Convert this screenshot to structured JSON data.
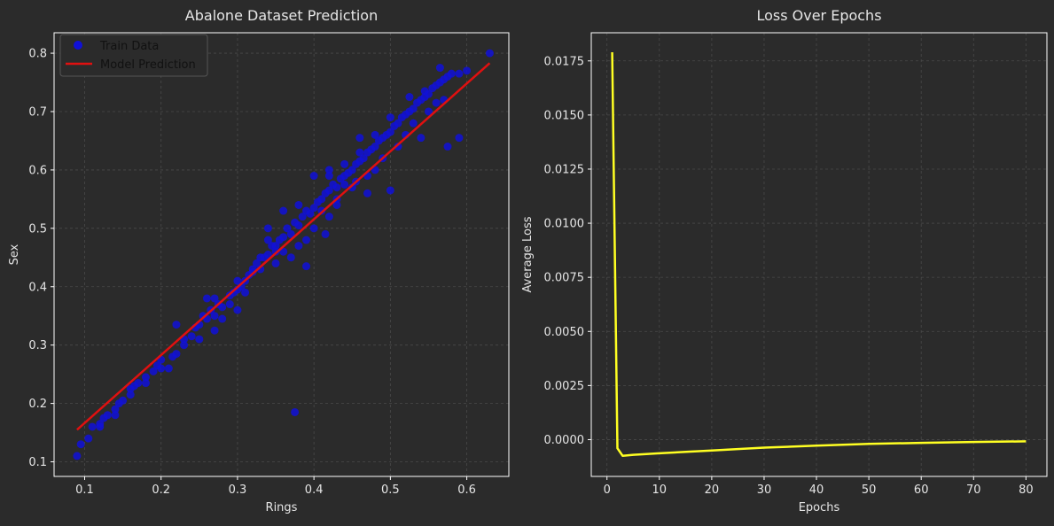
{
  "chart_data": [
    {
      "type": "scatter",
      "title": "Abalone Dataset Prediction",
      "xlabel": "Rings",
      "ylabel": "Sex",
      "xlim": [
        0.06,
        0.655
      ],
      "ylim": [
        0.075,
        0.835
      ],
      "xticks": [
        "0.1",
        "0.2",
        "0.3",
        "0.4",
        "0.5",
        "0.6"
      ],
      "yticks": [
        "0.1",
        "0.2",
        "0.3",
        "0.4",
        "0.5",
        "0.6",
        "0.7",
        "0.8"
      ],
      "grid": true,
      "legend": {
        "position": "top-left",
        "entries": [
          "Train Data",
          "Model Prediction"
        ]
      },
      "series": [
        {
          "name": "Train Data",
          "kind": "scatter",
          "color": "#1010d8",
          "points": [
            [
              0.09,
              0.11
            ],
            [
              0.095,
              0.13
            ],
            [
              0.105,
              0.14
            ],
            [
              0.11,
              0.16
            ],
            [
              0.12,
              0.16
            ],
            [
              0.125,
              0.175
            ],
            [
              0.13,
              0.18
            ],
            [
              0.14,
              0.19
            ],
            [
              0.145,
              0.2
            ],
            [
              0.15,
              0.205
            ],
            [
              0.16,
              0.215
            ],
            [
              0.165,
              0.23
            ],
            [
              0.17,
              0.235
            ],
            [
              0.18,
              0.245
            ],
            [
              0.19,
              0.255
            ],
            [
              0.195,
              0.265
            ],
            [
              0.2,
              0.275
            ],
            [
              0.21,
              0.26
            ],
            [
              0.215,
              0.28
            ],
            [
              0.22,
              0.285
            ],
            [
              0.22,
              0.335
            ],
            [
              0.23,
              0.31
            ],
            [
              0.24,
              0.315
            ],
            [
              0.245,
              0.33
            ],
            [
              0.25,
              0.335
            ],
            [
              0.255,
              0.35
            ],
            [
              0.26,
              0.345
            ],
            [
              0.265,
              0.36
            ],
            [
              0.27,
              0.325
            ],
            [
              0.275,
              0.37
            ],
            [
              0.28,
              0.365
            ],
            [
              0.29,
              0.385
            ],
            [
              0.295,
              0.39
            ],
            [
              0.3,
              0.395
            ],
            [
              0.305,
              0.4
            ],
            [
              0.31,
              0.41
            ],
            [
              0.315,
              0.42
            ],
            [
              0.32,
              0.425
            ],
            [
              0.325,
              0.44
            ],
            [
              0.33,
              0.43
            ],
            [
              0.335,
              0.45
            ],
            [
              0.34,
              0.455
            ],
            [
              0.345,
              0.47
            ],
            [
              0.35,
              0.46
            ],
            [
              0.355,
              0.48
            ],
            [
              0.36,
              0.485
            ],
            [
              0.365,
              0.5
            ],
            [
              0.37,
              0.49
            ],
            [
              0.375,
              0.51
            ],
            [
              0.38,
              0.505
            ],
            [
              0.385,
              0.52
            ],
            [
              0.39,
              0.53
            ],
            [
              0.395,
              0.525
            ],
            [
              0.4,
              0.535
            ],
            [
              0.405,
              0.545
            ],
            [
              0.41,
              0.55
            ],
            [
              0.415,
              0.56
            ],
            [
              0.42,
              0.565
            ],
            [
              0.425,
              0.575
            ],
            [
              0.43,
              0.57
            ],
            [
              0.435,
              0.585
            ],
            [
              0.44,
              0.59
            ],
            [
              0.445,
              0.595
            ],
            [
              0.45,
              0.6
            ],
            [
              0.455,
              0.61
            ],
            [
              0.46,
              0.615
            ],
            [
              0.465,
              0.62
            ],
            [
              0.47,
              0.63
            ],
            [
              0.475,
              0.635
            ],
            [
              0.48,
              0.64
            ],
            [
              0.485,
              0.65
            ],
            [
              0.49,
              0.655
            ],
            [
              0.495,
              0.66
            ],
            [
              0.5,
              0.665
            ],
            [
              0.505,
              0.675
            ],
            [
              0.51,
              0.68
            ],
            [
              0.515,
              0.69
            ],
            [
              0.52,
              0.695
            ],
            [
              0.525,
              0.7
            ],
            [
              0.53,
              0.705
            ],
            [
              0.535,
              0.715
            ],
            [
              0.54,
              0.72
            ],
            [
              0.545,
              0.725
            ],
            [
              0.55,
              0.73
            ],
            [
              0.555,
              0.74
            ],
            [
              0.56,
              0.745
            ],
            [
              0.565,
              0.75
            ],
            [
              0.57,
              0.755
            ],
            [
              0.575,
              0.76
            ],
            [
              0.58,
              0.765
            ],
            [
              0.59,
              0.765
            ],
            [
              0.6,
              0.77
            ],
            [
              0.63,
              0.8
            ],
            [
              0.565,
              0.775
            ],
            [
              0.59,
              0.655
            ],
            [
              0.575,
              0.64
            ],
            [
              0.54,
              0.655
            ],
            [
              0.5,
              0.565
            ],
            [
              0.47,
              0.56
            ],
            [
              0.46,
              0.655
            ],
            [
              0.415,
              0.49
            ],
            [
              0.39,
              0.435
            ],
            [
              0.37,
              0.45
            ],
            [
              0.35,
              0.44
            ],
            [
              0.36,
              0.53
            ],
            [
              0.4,
              0.59
            ],
            [
              0.42,
              0.59
            ],
            [
              0.34,
              0.5
            ],
            [
              0.3,
              0.36
            ],
            [
              0.28,
              0.345
            ],
            [
              0.26,
              0.38
            ],
            [
              0.375,
              0.185
            ],
            [
              0.525,
              0.725
            ],
            [
              0.545,
              0.735
            ],
            [
              0.48,
              0.6
            ],
            [
              0.455,
              0.58
            ],
            [
              0.44,
              0.575
            ],
            [
              0.43,
              0.55
            ],
            [
              0.41,
              0.53
            ],
            [
              0.38,
              0.47
            ],
            [
              0.33,
              0.45
            ],
            [
              0.31,
              0.39
            ],
            [
              0.29,
              0.37
            ],
            [
              0.27,
              0.35
            ],
            [
              0.25,
              0.31
            ],
            [
              0.23,
              0.3
            ],
            [
              0.2,
              0.26
            ],
            [
              0.18,
              0.235
            ],
            [
              0.16,
              0.225
            ],
            [
              0.14,
              0.18
            ],
            [
              0.12,
              0.165
            ],
            [
              0.51,
              0.64
            ],
            [
              0.52,
              0.66
            ],
            [
              0.53,
              0.68
            ],
            [
              0.55,
              0.7
            ],
            [
              0.56,
              0.715
            ],
            [
              0.57,
              0.72
            ],
            [
              0.49,
              0.62
            ],
            [
              0.47,
              0.59
            ],
            [
              0.45,
              0.57
            ],
            [
              0.43,
              0.54
            ],
            [
              0.42,
              0.52
            ],
            [
              0.4,
              0.5
            ],
            [
              0.39,
              0.48
            ],
            [
              0.36,
              0.46
            ],
            [
              0.35,
              0.47
            ],
            [
              0.32,
              0.43
            ],
            [
              0.3,
              0.41
            ],
            [
              0.44,
              0.61
            ],
            [
              0.46,
              0.63
            ],
            [
              0.48,
              0.66
            ],
            [
              0.5,
              0.69
            ],
            [
              0.42,
              0.6
            ],
            [
              0.38,
              0.54
            ],
            [
              0.34,
              0.48
            ],
            [
              0.27,
              0.38
            ]
          ]
        },
        {
          "name": "Model Prediction",
          "kind": "line",
          "color": "#e01010",
          "points": [
            [
              0.09,
              0.155
            ],
            [
              0.63,
              0.783
            ]
          ]
        }
      ]
    },
    {
      "type": "line",
      "title": "Loss Over Epochs",
      "xlabel": "Epochs",
      "ylabel": "Average Loss",
      "xlim": [
        -3,
        84
      ],
      "ylim": [
        -0.0017,
        0.0188
      ],
      "xticks": [
        "0",
        "10",
        "20",
        "30",
        "40",
        "50",
        "60",
        "70",
        "80"
      ],
      "yticks": [
        "0.0000",
        "0.0025",
        "0.0050",
        "0.0075",
        "0.0100",
        "0.0125",
        "0.0150",
        "0.0175"
      ],
      "grid": true,
      "series": [
        {
          "kind": "line",
          "color": "#ffff22",
          "points": [
            [
              1,
              0.0179
            ],
            [
              2,
              -0.0004
            ],
            [
              3,
              -0.00075
            ],
            [
              5,
              -0.0007
            ],
            [
              10,
              -0.00063
            ],
            [
              20,
              -0.0005
            ],
            [
              30,
              -0.00037
            ],
            [
              40,
              -0.00028
            ],
            [
              50,
              -0.0002
            ],
            [
              60,
              -0.00015
            ],
            [
              70,
              -0.00011
            ],
            [
              80,
              -8e-05
            ]
          ]
        }
      ]
    }
  ]
}
